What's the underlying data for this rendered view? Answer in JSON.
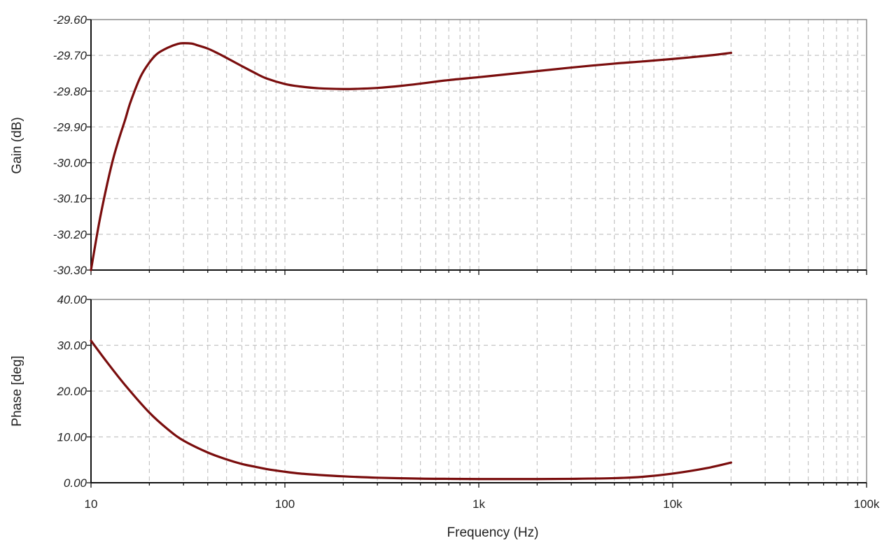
{
  "chart_data": [
    {
      "type": "line",
      "panel": "gain",
      "ylabel": "Gain (dB)",
      "xlabel": "",
      "x_scale": "log",
      "xlim": [
        10,
        100000
      ],
      "ylim": [
        -30.3,
        -29.6
      ],
      "grid": true,
      "line_color": "#7a0d0d",
      "y_ticks": [
        {
          "value": -29.6,
          "label": "-29.60"
        },
        {
          "value": -29.7,
          "label": "-29.70"
        },
        {
          "value": -29.8,
          "label": "-29.80"
        },
        {
          "value": -29.9,
          "label": "-29.90"
        },
        {
          "value": -30.0,
          "label": "-30.00"
        },
        {
          "value": -30.1,
          "label": "-30.10"
        },
        {
          "value": -30.2,
          "label": "-30.20"
        },
        {
          "value": -30.3,
          "label": "-30.30"
        }
      ],
      "series": [
        {
          "x": [
            10,
            11,
            12,
            13,
            14,
            15,
            16,
            18,
            20,
            22,
            25,
            28,
            30,
            33,
            35,
            40,
            45,
            50,
            60,
            70,
            80,
            100,
            120,
            150,
            200,
            250,
            300,
            400,
            500,
            700,
            1000,
            1500,
            2000,
            3000,
            5000,
            7000,
            10000,
            15000,
            20000
          ],
          "y": [
            -30.3,
            -30.17,
            -30.07,
            -29.99,
            -29.93,
            -29.88,
            -29.83,
            -29.76,
            -29.72,
            -29.695,
            -29.678,
            -29.668,
            -29.666,
            -29.667,
            -29.671,
            -29.681,
            -29.694,
            -29.707,
            -29.73,
            -29.749,
            -29.764,
            -29.78,
            -29.787,
            -29.792,
            -29.794,
            -29.793,
            -29.791,
            -29.785,
            -29.779,
            -29.769,
            -29.761,
            -29.751,
            -29.744,
            -29.734,
            -29.723,
            -29.717,
            -29.71,
            -29.701,
            -29.693
          ]
        }
      ]
    },
    {
      "type": "line",
      "panel": "phase",
      "ylabel": "Phase [deg]",
      "xlabel": "Frequency (Hz)",
      "x_scale": "log",
      "xlim": [
        10,
        100000
      ],
      "ylim": [
        0,
        40
      ],
      "grid": true,
      "line_color": "#7a0d0d",
      "y_ticks": [
        {
          "value": 40,
          "label": "40.00"
        },
        {
          "value": 30,
          "label": "30.00"
        },
        {
          "value": 20,
          "label": "20.00"
        },
        {
          "value": 10,
          "label": "10.00"
        },
        {
          "value": 0,
          "label": "0.00"
        }
      ],
      "x_ticks": [
        {
          "value": 10,
          "label": "10"
        },
        {
          "value": 100,
          "label": "100"
        },
        {
          "value": 1000,
          "label": "1k"
        },
        {
          "value": 10000,
          "label": "10k"
        },
        {
          "value": 100000,
          "label": "100k"
        }
      ],
      "series": [
        {
          "x": [
            10,
            12,
            15,
            20,
            25,
            30,
            40,
            50,
            60,
            70,
            80,
            100,
            120,
            150,
            200,
            300,
            500,
            700,
            1000,
            1500,
            2000,
            3000,
            5000,
            7000,
            10000,
            15000,
            20000
          ],
          "y": [
            31,
            26.5,
            21.3,
            15.3,
            11.6,
            9.2,
            6.6,
            5.1,
            4.1,
            3.5,
            3.0,
            2.4,
            2.0,
            1.7,
            1.4,
            1.1,
            0.9,
            0.85,
            0.8,
            0.8,
            0.8,
            0.85,
            1.0,
            1.3,
            2.0,
            3.2,
            4.4
          ]
        }
      ]
    }
  ]
}
